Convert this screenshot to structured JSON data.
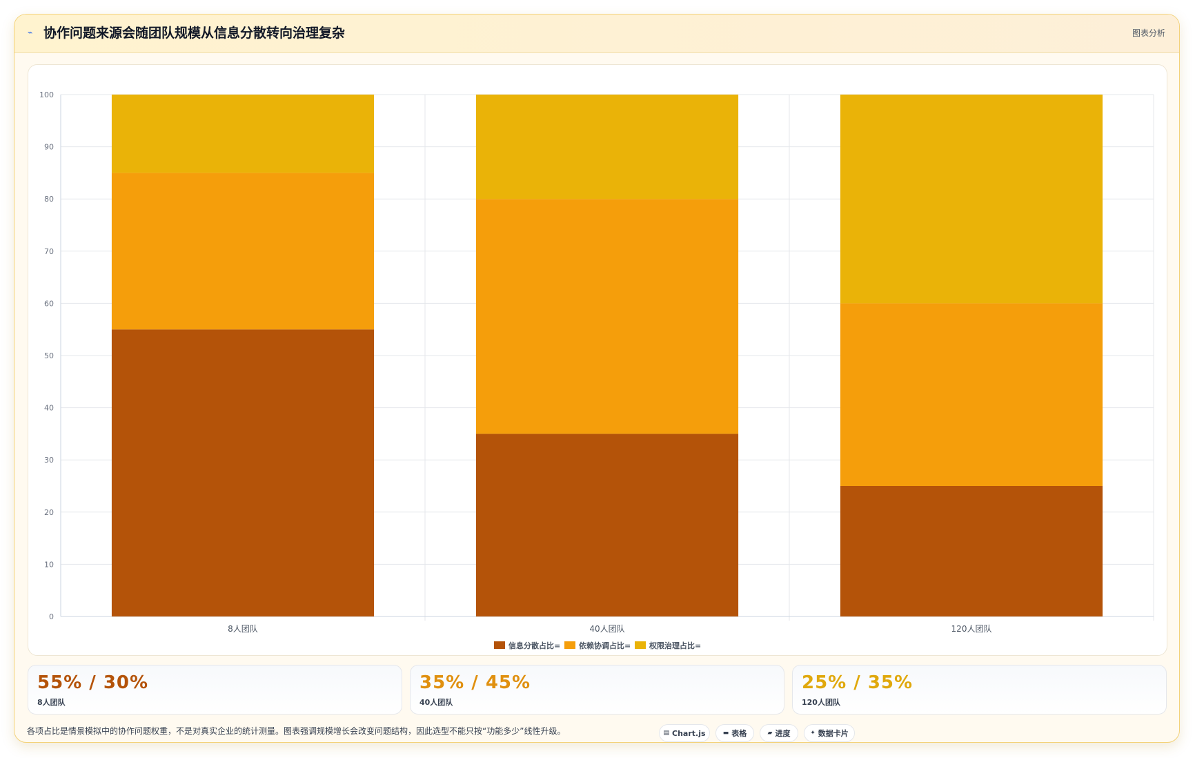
{
  "header": {
    "icon": "trend-icon",
    "title": "协作问题来源会随团队规模从信息分散转向治理复杂",
    "tag": "图表分析"
  },
  "chart_data": {
    "type": "bar",
    "stacked": true,
    "categories": [
      "8人团队",
      "40人团队",
      "120人团队"
    ],
    "series": [
      {
        "name": "信息分散占比=",
        "color": "#b45309",
        "values": [
          55,
          35,
          25
        ]
      },
      {
        "name": "依赖协调占比=",
        "color": "#f59e0b",
        "values": [
          30,
          45,
          35
        ]
      },
      {
        "name": "权限治理占比=",
        "color": "#eab308",
        "values": [
          15,
          20,
          40
        ]
      }
    ],
    "ylim": [
      0,
      100
    ],
    "yticks": [
      0,
      10,
      20,
      30,
      40,
      50,
      60,
      70,
      80,
      90,
      100
    ],
    "grid": true,
    "legend": "bottom"
  },
  "stats": [
    {
      "value": "55% / 30%",
      "label": "8人团队",
      "color": "#b45309"
    },
    {
      "value": "35% / 45%",
      "label": "40人团队",
      "color": "#e0900f"
    },
    {
      "value": "25% / 35%",
      "label": "120人团队",
      "color": "#e0a80c"
    }
  ],
  "footer": {
    "note": "各项占比是情景模拟中的协作问题权重，不是对真实企业的统计测量。图表强调规模增长会改变问题结构，因此选型不能只按“功能多少”线性升级。"
  },
  "chips": [
    {
      "icon": "chart-icon",
      "glyph": "▤",
      "label": "Chart.js"
    },
    {
      "icon": "table-icon",
      "glyph": "▬",
      "label": "表格"
    },
    {
      "icon": "progress-icon",
      "glyph": "▰",
      "label": "进度"
    },
    {
      "icon": "sparkle-icon",
      "glyph": "✦",
      "label": "数据卡片"
    }
  ]
}
